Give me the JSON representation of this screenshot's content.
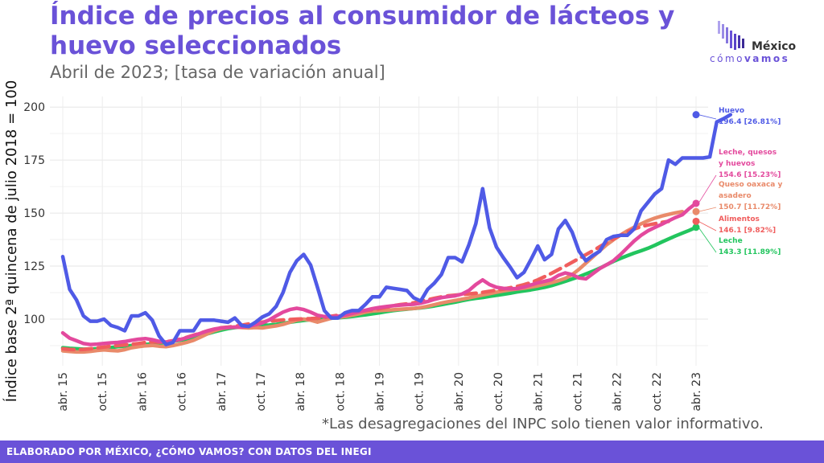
{
  "title": "Índice de precios al consumidor de lácteos y huevo seleccionados",
  "subtitle": "Abril de 2023; [tasa de variación anual]",
  "logo": {
    "word1": "México",
    "word2a": "cómo",
    "word2b": "vamos"
  },
  "note": "*Las desagregaciones del INPC solo tienen valor informativo.",
  "footer": "ELABORADO POR MÉXICO, ¿CÓMO VAMOS? CON DATOS DEL INEGI",
  "colors": {
    "accent": "#6a52d8",
    "huevo": "#4f5ae6",
    "leche_quesos_huevos": "#e3499d",
    "queso": "#e98a6a",
    "alimentos": "#f05d5d",
    "leche": "#22c55e"
  },
  "chart_data": {
    "type": "line",
    "ylabel": "Índice base 2ª quincena de julio 2018 = 100",
    "xlabel": "",
    "ylim": [
      78,
      205
    ],
    "yticks": [
      100,
      125,
      150,
      175,
      200
    ],
    "grid": true,
    "x_start": "abr. 15",
    "x_ticks": [
      "abr. 15",
      "oct. 15",
      "abr. 16",
      "oct. 16",
      "abr. 17",
      "oct. 17",
      "abr. 18",
      "oct. 18",
      "abr. 19",
      "oct. 19",
      "abr. 20",
      "oct. 20",
      "abr. 21",
      "oct. 21",
      "abr. 22",
      "oct. 22",
      "abr. 23"
    ],
    "series": [
      {
        "name": "Leche",
        "color_key": "leche",
        "dashed": false,
        "values": [
          86.5,
          86.2,
          86,
          85.8,
          85.8,
          86,
          86.3,
          86.6,
          87,
          87.3,
          87.5,
          87.7,
          88,
          88.3,
          88.6,
          89,
          89.5,
          90,
          90.5,
          91.2,
          92,
          93,
          94,
          94.8,
          95.5,
          96,
          96.3,
          96.5,
          96.7,
          97,
          97.2,
          97.5,
          98,
          98.5,
          99,
          99.4,
          99.7,
          100,
          100.2,
          100.4,
          100.6,
          100.9,
          101.2,
          101.6,
          102,
          102.5,
          103,
          103.5,
          104,
          104.4,
          104.7,
          105,
          105.3,
          105.7,
          106.2,
          106.8,
          107.4,
          108,
          108.7,
          109.3,
          109.8,
          110.2,
          110.7,
          111.2,
          111.7,
          112.2,
          112.8,
          113.3,
          113.8,
          114.4,
          115,
          115.8,
          116.8,
          117.8,
          118.9,
          120,
          121.3,
          122.6,
          124,
          125.6,
          127.2,
          128.6,
          129.9,
          131.1,
          132.2,
          133.4,
          134.8,
          136.3,
          137.8,
          139.2,
          140.5,
          141.8,
          143.3
        ]
      },
      {
        "name": "Queso oaxaca y asadero",
        "color_key": "queso",
        "dashed": false,
        "values": [
          85,
          84.7,
          84.5,
          84.5,
          84.8,
          85.2,
          85.5,
          85.2,
          85,
          85.6,
          86.5,
          87,
          87.4,
          87.6,
          87.2,
          87,
          87.5,
          88.2,
          89,
          90,
          91.5,
          93,
          94.5,
          95.5,
          96,
          96.3,
          96,
          95.8,
          96,
          95.8,
          96.3,
          96.8,
          97.5,
          98.5,
          99.5,
          100,
          99.5,
          98.6,
          99.5,
          100.4,
          100.8,
          101.2,
          101.8,
          102.5,
          103.3,
          103.8,
          104,
          104.2,
          104.4,
          104.6,
          104.8,
          105,
          105.4,
          106,
          106.8,
          107.6,
          108.2,
          108.8,
          109.4,
          110,
          110.7,
          111.4,
          112,
          112.7,
          113.3,
          113.8,
          114.2,
          114.6,
          115.1,
          115.7,
          116.4,
          117.2,
          118.1,
          119.2,
          121,
          123.5,
          126.4,
          129.3,
          132.2,
          135,
          137.4,
          139.6,
          141.6,
          143.3,
          144.9,
          146.4,
          147.6,
          148.6,
          149.4,
          150.1,
          150.7
        ]
      },
      {
        "name": "Alimentos",
        "color_key": "alimentos",
        "dashed": true,
        "values": [
          86,
          85.7,
          85.6,
          85.7,
          86,
          86.4,
          86.8,
          87.2,
          87.5,
          87.8,
          88.1,
          88.5,
          89,
          89.3,
          89.1,
          89.3,
          89.8,
          90.5,
          91.4,
          92.4,
          93.4,
          94.4,
          95.3,
          95.9,
          96.2,
          96.6,
          97.1,
          97.7,
          98.2,
          98.6,
          99,
          99.3,
          99.6,
          99.8,
          100,
          100.1,
          100.2,
          100.4,
          100.8,
          101.3,
          101.8,
          102.4,
          103,
          103.5,
          104,
          104.4,
          104.9,
          105.6,
          106.3,
          106.8,
          107.2,
          107.7,
          108.4,
          109.1,
          109.8,
          110.5,
          111,
          111.3,
          111.6,
          111.9,
          112.2,
          112.6,
          113.1,
          113.7,
          114.2,
          114.8,
          115.4,
          116.2,
          117.2,
          118.5,
          120,
          121.6,
          123.3,
          125,
          126.8,
          128.6,
          130.4,
          132.2,
          134.1,
          136,
          137.8,
          139.5,
          141.1,
          142.5,
          143.6,
          144.4,
          145,
          145.6,
          146.1
        ]
      },
      {
        "name": "Leche, quesos y huevos",
        "color_key": "leche_quesos_huevos",
        "dashed": false,
        "values": [
          93.5,
          91,
          89.8,
          88.5,
          88,
          88.2,
          88.5,
          88.8,
          89,
          89.4,
          90,
          90.5,
          90.8,
          90.3,
          89.5,
          89.2,
          89.6,
          90.3,
          91.2,
          92.2,
          93.3,
          94.4,
          95.3,
          95.8,
          96,
          96.2,
          96.3,
          96.6,
          97.3,
          98.2,
          99.6,
          101.5,
          103.3,
          104.5,
          105.1,
          104.5,
          103.3,
          101.8,
          101.2,
          101,
          101.3,
          101.9,
          102.6,
          103.4,
          104.2,
          104.9,
          105.5,
          105.9,
          106.3,
          106.6,
          106.8,
          107,
          107.5,
          108.3,
          109.3,
          110.1,
          110.6,
          111,
          111.8,
          113.5,
          116.3,
          118.5,
          116.3,
          115,
          114.5,
          114.3,
          114.4,
          115.1,
          116.1,
          117.1,
          117.8,
          118.6,
          120.6,
          121.8,
          121,
          119.4,
          119,
          121.4,
          123.8,
          125.6,
          127.5,
          130.4,
          133.6,
          136.8,
          139.5,
          141.6,
          143.2,
          144.7,
          146.3,
          147.9,
          149.2,
          152.1,
          154.6
        ]
      },
      {
        "name": "Huevo",
        "color_key": "huevo",
        "dashed": false,
        "values": [
          129.5,
          114,
          109,
          101.5,
          99,
          99,
          100,
          97,
          96,
          94.5,
          101.5,
          101.5,
          103,
          99.5,
          92,
          88,
          89,
          94.5,
          94.5,
          94.5,
          99.5,
          99.5,
          99.5,
          99,
          98.5,
          100.5,
          97,
          96.5,
          98.5,
          101,
          102.5,
          106,
          112.5,
          122,
          127.5,
          130.5,
          125.5,
          115,
          104,
          100.5,
          100.5,
          103,
          104,
          104,
          107,
          110.5,
          110.5,
          115,
          114.5,
          114,
          113.5,
          110,
          108.5,
          114,
          117,
          121,
          129,
          129,
          127,
          135,
          145,
          161.5,
          143,
          134,
          129,
          124.5,
          119.5,
          122,
          128,
          134.5,
          128,
          130.5,
          142.5,
          146.5,
          141,
          132,
          127.5,
          130,
          132,
          137.5,
          139,
          139.5,
          139.5,
          142.5,
          151,
          155,
          159,
          161.5,
          175,
          173,
          176,
          176,
          176,
          176,
          176.5,
          193,
          194.5,
          196.4
        ]
      }
    ],
    "annotations": [
      {
        "series": "Huevo",
        "lines": [
          "Huevo",
          "196.4 [26.81%]"
        ]
      },
      {
        "series": "Leche, quesos y huevos",
        "lines": [
          "Leche, quesos",
          "y huevos",
          "154.6 [15.23%]"
        ]
      },
      {
        "series": "Queso oaxaca y asadero",
        "lines": [
          "Queso oaxaca y",
          "asadero",
          "150.7 [11.72%]"
        ]
      },
      {
        "series": "Alimentos",
        "lines": [
          "Alimentos",
          "146.1 [9.82%]"
        ]
      },
      {
        "series": "Leche",
        "lines": [
          "Leche",
          "143.3 [11.89%]"
        ]
      }
    ]
  }
}
